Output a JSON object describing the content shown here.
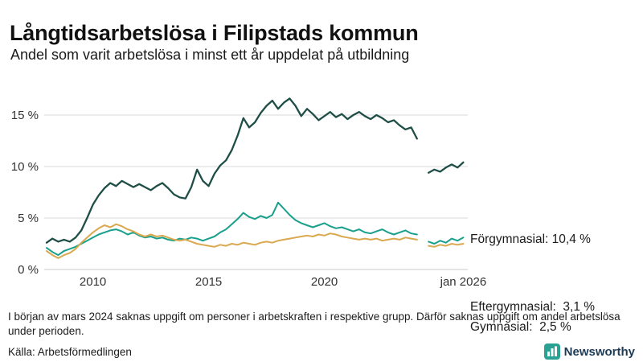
{
  "header": {
    "title": "Långtidsarbetslösa i Filipstads kommun",
    "subtitle": "Andel som varit arbetslösa i minst ett år uppdelat på utbildning"
  },
  "footer": {
    "note": "I början av mars 2024 saknas uppgift om personer i arbetskraften i respektive grupp. Därför saknas uppgift om andel arbetslösa under perioden.",
    "source": "Källa: Arbetsförmedlingen",
    "logo_text": "Newsworthy"
  },
  "colors": {
    "forgymnasial": "#1f4e46",
    "eftergymnasial": "#18a08c",
    "gymnasial": "#daa84f",
    "grid": "#d8d8d8",
    "axis_text": "#333333",
    "logo_teal": "#2aa293",
    "logo_navy": "#1d3a55"
  },
  "chart_data": {
    "type": "line",
    "title": "Långtidsarbetslösa i Filipstads kommun",
    "xlabel": "",
    "ylabel": "",
    "x_unit": "year",
    "x_start": 2008.0,
    "x_step": 0.25,
    "x_range": [
      2008,
      2026.2
    ],
    "ylim": [
      0,
      18
    ],
    "grid": "horizontal",
    "legend_position": "inline-right",
    "gap_note": "values are null from mars 2024 where data is missing",
    "y_ticks": [
      {
        "v": 0,
        "label": "0 %"
      },
      {
        "v": 5,
        "label": "5 %"
      },
      {
        "v": 10,
        "label": "10 %"
      },
      {
        "v": 15,
        "label": "15 %"
      }
    ],
    "x_ticks": [
      {
        "v": 2010,
        "label": "2010"
      },
      {
        "v": 2015,
        "label": "2015"
      },
      {
        "v": 2020,
        "label": "2020"
      },
      {
        "v": 2026,
        "label": "jan 2026"
      }
    ],
    "series": [
      {
        "name": "Förgymnasial",
        "end_value": "10,4 %",
        "label_text": "Förgymnasial: 10,4 %",
        "color": "#1f4e46",
        "width": 2.3,
        "values": [
          2.6,
          3.0,
          2.7,
          2.9,
          2.7,
          3.1,
          3.8,
          5.0,
          6.3,
          7.2,
          7.9,
          8.4,
          8.1,
          8.6,
          8.3,
          8.0,
          8.3,
          8.0,
          7.7,
          8.1,
          8.4,
          7.9,
          7.3,
          7.0,
          6.9,
          8.0,
          9.7,
          8.6,
          8.1,
          9.3,
          10.1,
          10.6,
          11.6,
          13.0,
          14.7,
          13.8,
          14.3,
          15.2,
          15.9,
          16.4,
          15.6,
          16.2,
          16.6,
          15.9,
          14.9,
          15.6,
          15.1,
          14.5,
          14.9,
          15.3,
          14.8,
          15.1,
          14.6,
          15.0,
          15.3,
          14.9,
          14.6,
          15.0,
          14.7,
          14.3,
          14.5,
          14.0,
          13.6,
          13.8,
          12.7,
          null,
          9.4,
          9.7,
          9.5,
          9.9,
          10.2,
          9.9,
          10.4
        ]
      },
      {
        "name": "Eftergymnasial",
        "end_value": "3,1 %",
        "label_text": "Eftergymnasial:  3,1 %",
        "color": "#18a08c",
        "width": 2,
        "values": [
          2.1,
          1.7,
          1.4,
          1.8,
          2.0,
          2.2,
          2.5,
          2.8,
          3.1,
          3.4,
          3.6,
          3.8,
          3.9,
          3.7,
          3.4,
          3.6,
          3.3,
          3.1,
          3.2,
          3.0,
          3.1,
          2.9,
          2.8,
          3.0,
          2.9,
          3.1,
          3.0,
          2.8,
          3.0,
          3.2,
          3.6,
          3.9,
          4.4,
          4.9,
          5.5,
          5.1,
          4.9,
          5.2,
          5.0,
          5.3,
          6.5,
          5.9,
          5.3,
          4.8,
          4.5,
          4.3,
          4.1,
          4.3,
          4.5,
          4.2,
          4.0,
          4.1,
          3.9,
          3.7,
          3.9,
          3.6,
          3.5,
          3.7,
          3.9,
          3.6,
          3.4,
          3.6,
          3.8,
          3.5,
          3.4,
          null,
          2.7,
          2.5,
          2.8,
          2.6,
          3.0,
          2.8,
          3.1
        ]
      },
      {
        "name": "Gymnasial",
        "end_value": "2,5 %",
        "label_text": "Gymnasial:  2,5 %",
        "color": "#daa84f",
        "width": 2,
        "values": [
          1.8,
          1.4,
          1.1,
          1.4,
          1.6,
          2.0,
          2.6,
          3.1,
          3.6,
          4.0,
          4.3,
          4.1,
          4.4,
          4.2,
          3.9,
          3.7,
          3.4,
          3.2,
          3.4,
          3.2,
          3.3,
          3.1,
          2.9,
          2.8,
          2.9,
          2.7,
          2.5,
          2.4,
          2.3,
          2.2,
          2.4,
          2.3,
          2.5,
          2.4,
          2.6,
          2.5,
          2.4,
          2.6,
          2.7,
          2.6,
          2.8,
          2.9,
          3.0,
          3.1,
          3.2,
          3.3,
          3.2,
          3.4,
          3.3,
          3.5,
          3.4,
          3.2,
          3.1,
          3.0,
          2.9,
          3.0,
          2.9,
          3.0,
          2.8,
          2.9,
          3.0,
          2.9,
          3.1,
          3.0,
          2.9,
          null,
          2.3,
          2.2,
          2.4,
          2.3,
          2.5,
          2.4,
          2.5
        ]
      }
    ]
  }
}
